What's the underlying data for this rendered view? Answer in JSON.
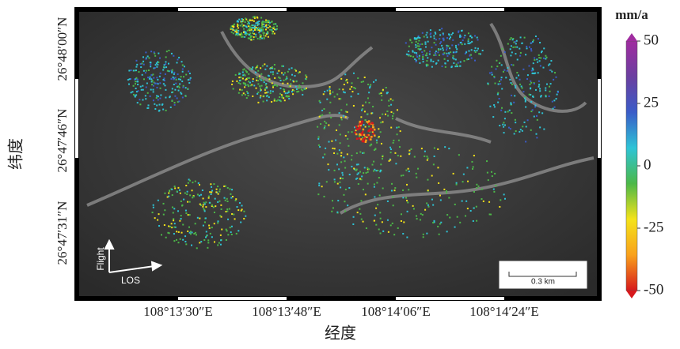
{
  "map": {
    "x_axis": {
      "label": "经度",
      "ticks": [
        "108°13′30″E",
        "108°13′48″E",
        "108°14′06″E",
        "108°14′24″E"
      ]
    },
    "y_axis": {
      "label": "纬度",
      "ticks": [
        "26°48′00″N",
        "26°47′46″N",
        "26°47′31″N"
      ]
    },
    "colorbar": {
      "unit": "mm/a",
      "lim": [
        -50,
        50
      ],
      "ticks": [
        50,
        25,
        0,
        -25,
        -50
      ],
      "colors": [
        "#d7191c",
        "#f9a11b",
        "#f4e31a",
        "#4cb848",
        "#2ec4d6",
        "#3a5cc8",
        "#6b3fa0",
        "#a02ca0"
      ]
    },
    "scale_bar": "0.3 km",
    "arrows": {
      "flight": "Flight",
      "los": "LOS"
    }
  }
}
